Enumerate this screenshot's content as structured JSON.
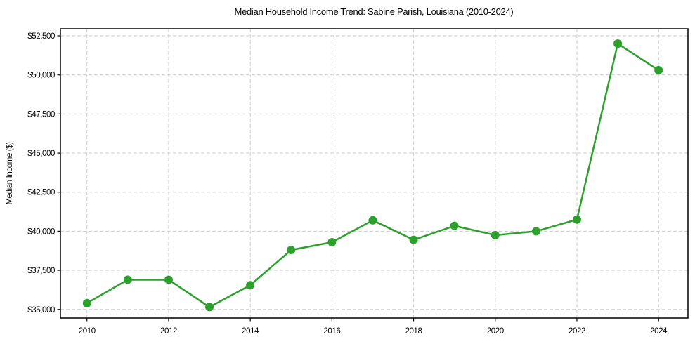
{
  "figure": {
    "background": "#ffffff"
  },
  "chart_data": {
    "type": "line",
    "title": "Median Household Income Trend: Sabine Parish, Louisiana (2010-2024)",
    "xlabel": "",
    "ylabel": "Median Income ($)",
    "x": [
      2010,
      2011,
      2012,
      2013,
      2014,
      2015,
      2016,
      2017,
      2018,
      2019,
      2020,
      2021,
      2022,
      2023,
      2024
    ],
    "values": [
      35400,
      36900,
      36900,
      35150,
      36550,
      38800,
      39300,
      40700,
      39450,
      40350,
      39750,
      40000,
      40750,
      52000,
      50300
    ],
    "line_color": "#2ca02c",
    "marker": "circle",
    "marker_radius": 6,
    "grid": true,
    "grid_color": "#cccccc",
    "grid_style": "dashed",
    "legend_position": "none",
    "xlim": [
      2009.35,
      2024.72
    ],
    "ylim": [
      34450,
      52950
    ],
    "x_ticks": [
      2010,
      2012,
      2014,
      2016,
      2018,
      2020,
      2022,
      2024
    ],
    "x_tick_labels": [
      "2010",
      "2012",
      "2014",
      "2016",
      "2018",
      "2020",
      "2022",
      "2024"
    ],
    "y_ticks": [
      35000,
      37500,
      40000,
      42500,
      45000,
      47500,
      50000,
      52500
    ],
    "y_tick_labels": [
      "$35,000",
      "$37,500",
      "$40,000",
      "$42,500",
      "$45,000",
      "$47,500",
      "$50,000",
      "$52,500"
    ]
  }
}
